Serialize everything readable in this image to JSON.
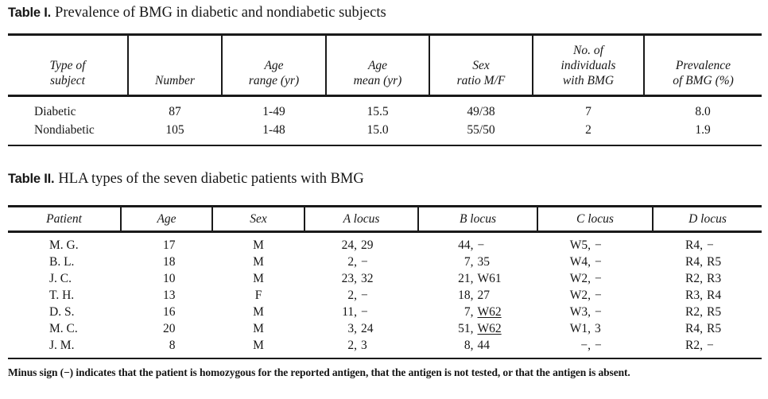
{
  "page": {
    "background": "#ffffff",
    "text_color": "#161616",
    "rule_color": "#1a1a1a"
  },
  "table1": {
    "label": "Table I.",
    "title": "Prevalence of BMG in diabetic and nondiabetic subjects",
    "headers": [
      [
        "Type of",
        "subject"
      ],
      [
        "Number"
      ],
      [
        "Age",
        "range (yr)"
      ],
      [
        "Age",
        "mean (yr)"
      ],
      [
        "Sex",
        "ratio M/F"
      ],
      [
        "No. of",
        "individuals",
        "with BMG"
      ],
      [
        "Prevalence",
        "of BMG (%)"
      ]
    ],
    "rows": [
      [
        "Diabetic",
        "87",
        "1-49",
        "15.5",
        "49/38",
        "7",
        "8.0"
      ],
      [
        "Nondiabetic",
        "105",
        "1-48",
        "15.0",
        "55/50",
        "2",
        "1.9"
      ]
    ]
  },
  "table2": {
    "label": "Table II.",
    "title": "HLA types of the seven diabetic patients with BMG",
    "headers": [
      "Patient",
      "Age",
      "Sex",
      "A locus",
      "B locus",
      "C locus",
      "D locus"
    ],
    "rows": [
      {
        "patient": "M. G.",
        "age": "17",
        "sex": "M",
        "a": {
          "first": "24",
          "second": "29"
        },
        "b": {
          "first": "44",
          "second": "−"
        },
        "c": {
          "first": "W5",
          "second": "−"
        },
        "d": {
          "first": "R4",
          "second": "−"
        }
      },
      {
        "patient": "B. L.",
        "age": "18",
        "sex": "M",
        "a": {
          "first": "2",
          "second": "−"
        },
        "b": {
          "first": "7",
          "second": "35"
        },
        "c": {
          "first": "W4",
          "second": "−"
        },
        "d": {
          "first": "R4",
          "second": "R5"
        }
      },
      {
        "patient": "J. C.",
        "age": "10",
        "sex": "M",
        "a": {
          "first": "23",
          "second": "32"
        },
        "b": {
          "first": "21",
          "second": "W61"
        },
        "c": {
          "first": "W2",
          "second": "−"
        },
        "d": {
          "first": "R2",
          "second": "R3"
        }
      },
      {
        "patient": "T. H.",
        "age": "13",
        "sex": "F",
        "a": {
          "first": "2",
          "second": "−"
        },
        "b": {
          "first": "18",
          "second": "27"
        },
        "c": {
          "first": "W2",
          "second": "−"
        },
        "d": {
          "first": "R3",
          "second": "R4"
        }
      },
      {
        "patient": "D. S.",
        "age": "16",
        "sex": "M",
        "a": {
          "first": "11",
          "second": "−"
        },
        "b": {
          "first": "7",
          "second": "W62",
          "underline": true
        },
        "c": {
          "first": "W3",
          "second": "−"
        },
        "d": {
          "first": "R2",
          "second": "R5"
        }
      },
      {
        "patient": "M. C.",
        "age": "20",
        "sex": "M",
        "a": {
          "first": "3",
          "second": "24"
        },
        "b": {
          "first": "51",
          "second": "W62",
          "underline": true
        },
        "c": {
          "first": "W1",
          "second": "3"
        },
        "d": {
          "first": "R4",
          "second": "R5"
        }
      },
      {
        "patient": "J. M.",
        "age": "8",
        "sex": "M",
        "a": {
          "first": "2",
          "second": "3"
        },
        "b": {
          "first": "8",
          "second": "44"
        },
        "c": {
          "first": "−",
          "second": "−"
        },
        "d": {
          "first": "R2",
          "second": "−"
        }
      }
    ]
  },
  "footnote": "Minus sign (−) indicates that the patient is homozygous for the reported antigen, that the antigen is not tested, or that the antigen is absent."
}
